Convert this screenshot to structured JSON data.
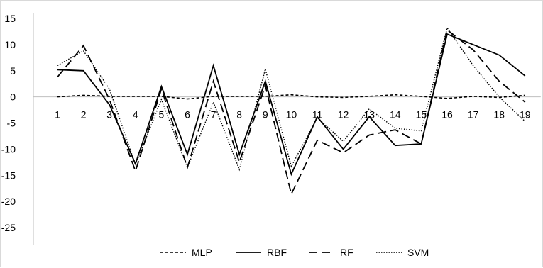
{
  "chart_data": {
    "type": "line",
    "title": "",
    "xlabel": "",
    "ylabel": "",
    "categories": [
      "1",
      "2",
      "3",
      "4",
      "5",
      "6",
      "7",
      "8",
      "9",
      "10",
      "11",
      "12",
      "13",
      "14",
      "15",
      "16",
      "17",
      "18",
      "19"
    ],
    "ylim": [
      -25,
      15
    ],
    "yticks": [
      15,
      10,
      5,
      0,
      -5,
      -10,
      -15,
      -20,
      -25
    ],
    "grid": false,
    "legend_position": "bottom",
    "series": [
      {
        "name": "MLP",
        "style": "short-dash",
        "color": "#000000",
        "values": [
          0,
          0.3,
          0.1,
          0.1,
          0.1,
          -0.4,
          0.1,
          0.1,
          0.1,
          0.4,
          0,
          -0.1,
          0.1,
          0.4,
          0.1,
          -0.3,
          0.1,
          -0.1,
          0.3
        ]
      },
      {
        "name": "RBF",
        "style": "solid",
        "color": "#000000",
        "values": [
          5.2,
          5,
          -1.5,
          -12.8,
          2,
          -11,
          6,
          -11,
          3,
          -14.8,
          -3.8,
          -10,
          -3.8,
          -9.3,
          -9,
          12,
          10,
          8,
          4
        ]
      },
      {
        "name": "RF",
        "style": "long-dash",
        "color": "#000000",
        "values": [
          3.8,
          9.8,
          -0.5,
          -14.2,
          1.5,
          -13.5,
          3,
          -12.5,
          2.2,
          -18.6,
          -8.3,
          -10.7,
          -7.3,
          -6.3,
          -9,
          12.8,
          9,
          3,
          -1
        ]
      },
      {
        "name": "SVM",
        "style": "dotted",
        "color": "#000000",
        "values": [
          6,
          8.8,
          1.5,
          -13,
          -0.5,
          -13.5,
          -1,
          -13.9,
          5.3,
          -13.3,
          -4,
          -8.5,
          -2.3,
          -6,
          -6.5,
          13.2,
          6,
          0,
          -4.7
        ]
      }
    ]
  }
}
